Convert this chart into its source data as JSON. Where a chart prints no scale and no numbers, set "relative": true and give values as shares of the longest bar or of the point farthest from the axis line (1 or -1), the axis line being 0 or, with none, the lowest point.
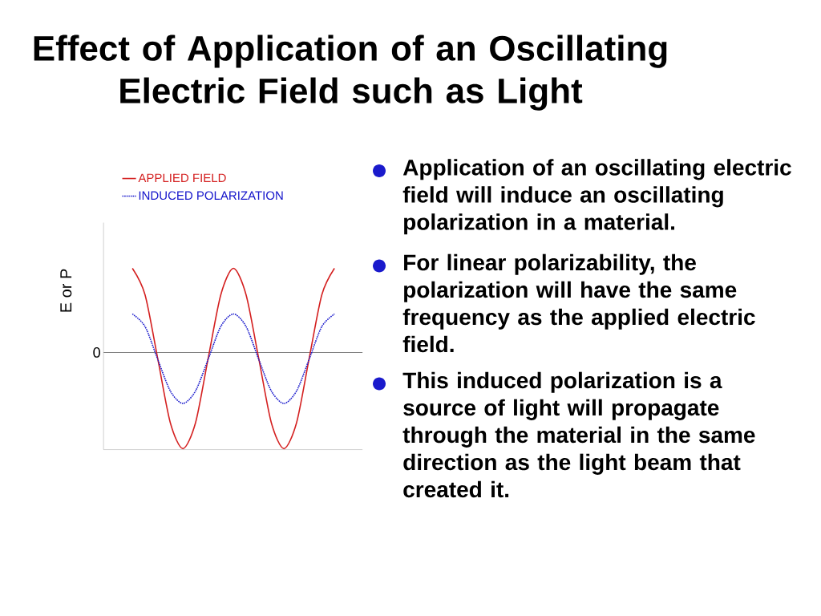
{
  "chart_data": {
    "type": "line",
    "title": "Effect of Application of an Oscillating Electric Field such as Light",
    "ylabel": "E  or  P",
    "relative": true,
    "legend": "top left",
    "marker": "none",
    "categories": [
      null,
      null,
      null,
      null,
      null,
      null,
      null,
      null,
      null,
      null,
      null,
      null,
      null,
      null,
      null,
      null,
      null
    ],
    "series": [
      {
        "name": "APPLIED FIELD",
        "color": "#d42020",
        "line_style": "solid",
        "values": [
          0.875,
          0.6,
          -0.06,
          -0.73,
          -1,
          -0.73,
          -0.06,
          0.6,
          0.875,
          0.6,
          -0.06,
          -0.73,
          -1,
          -0.73,
          -0.06,
          0.6,
          0.875
        ]
      },
      {
        "name": "INDUCED POLARIZATION",
        "color": "#1a1acc",
        "line_style": "dotted",
        "values": [
          0.4,
          0.27,
          -0.07,
          -0.4,
          -0.53,
          -0.4,
          -0.07,
          0.27,
          0.4,
          0.27,
          -0.07,
          -0.4,
          -0.53,
          -0.4,
          -0.07,
          0.27,
          0.4
        ]
      }
    ],
    "ref_lines": [
      {
        "axis": "y",
        "value": 0,
        "label": "0",
        "color": "#808080"
      }
    ],
    "annotations": [
      "Application of an oscillating electric field will induce an oscillating polarization in a material.",
      "For linear polarizability, the polarization will have the same frequency as the applied electric field.",
      "This induced polarization is a source of light will propagate through the material in the same direction as the light beam that created it."
    ]
  }
}
